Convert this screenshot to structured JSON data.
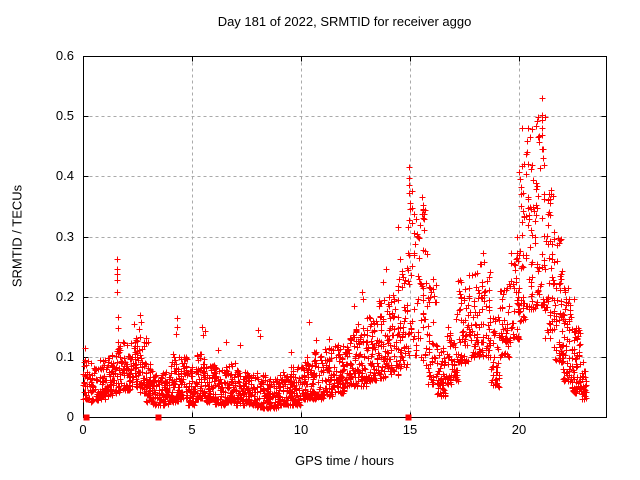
{
  "chart_data": {
    "type": "scatter",
    "title": "Day 181 of 2022, SRMTID for receiver aggo",
    "xlabel": "GPS time / hours",
    "ylabel": "SRMTID / TECUs",
    "xlim": [
      0,
      24
    ],
    "ylim": [
      0,
      0.6
    ],
    "xticks": [
      0,
      5,
      10,
      15,
      20
    ],
    "xtick_labels": [
      "0",
      "5",
      "10",
      "15",
      "20"
    ],
    "yticks": [
      0,
      0.1,
      0.2,
      0.3,
      0.4,
      0.5,
      0.6
    ],
    "ytick_labels": [
      "0",
      "0.1",
      "0.2",
      "0.3",
      "0.4",
      "0.5",
      "0.6"
    ],
    "grid": true,
    "legend_position": "none",
    "series_name": "SRMTID",
    "marker": "plus",
    "marker_color": "#ff0000",
    "grid_color": "#aaaaaa",
    "axis_color": "#000000",
    "background_color": "#ffffff",
    "seed": 42,
    "bins_schema": [
      "t_start_hours",
      "t_end_hours",
      "n_points",
      "value_min_TECUs",
      "value_max_TECUs"
    ],
    "bins": [
      [
        0.0,
        0.3,
        28,
        0.03,
        0.11
      ],
      [
        0.3,
        0.7,
        38,
        0.025,
        0.09
      ],
      [
        0.7,
        1.1,
        45,
        0.03,
        0.095
      ],
      [
        1.1,
        1.5,
        45,
        0.035,
        0.105
      ],
      [
        1.5,
        1.8,
        35,
        0.04,
        0.13
      ],
      [
        1.8,
        2.2,
        48,
        0.045,
        0.125
      ],
      [
        2.2,
        2.6,
        48,
        0.05,
        0.135
      ],
      [
        2.6,
        2.9,
        35,
        0.04,
        0.14
      ],
      [
        2.9,
        3.2,
        40,
        0.025,
        0.09
      ],
      [
        3.2,
        3.6,
        50,
        0.02,
        0.07
      ],
      [
        3.6,
        4.0,
        52,
        0.02,
        0.075
      ],
      [
        4.0,
        4.4,
        48,
        0.025,
        0.105
      ],
      [
        4.4,
        4.8,
        48,
        0.03,
        0.1
      ],
      [
        4.8,
        5.2,
        52,
        0.02,
        0.085
      ],
      [
        5.2,
        5.6,
        52,
        0.03,
        0.105
      ],
      [
        5.6,
        6.0,
        52,
        0.025,
        0.09
      ],
      [
        6.0,
        6.5,
        58,
        0.02,
        0.085
      ],
      [
        6.5,
        7.0,
        58,
        0.025,
        0.09
      ],
      [
        7.0,
        7.5,
        58,
        0.02,
        0.08
      ],
      [
        7.5,
        8.0,
        58,
        0.02,
        0.075
      ],
      [
        8.0,
        8.5,
        58,
        0.015,
        0.07
      ],
      [
        8.5,
        9.0,
        58,
        0.015,
        0.065
      ],
      [
        9.0,
        9.5,
        58,
        0.02,
        0.075
      ],
      [
        9.5,
        10.0,
        58,
        0.02,
        0.085
      ],
      [
        10.0,
        10.5,
        56,
        0.03,
        0.1
      ],
      [
        10.5,
        11.0,
        56,
        0.03,
        0.11
      ],
      [
        11.0,
        11.5,
        56,
        0.035,
        0.115
      ],
      [
        11.5,
        12.0,
        56,
        0.04,
        0.125
      ],
      [
        12.0,
        12.5,
        56,
        0.05,
        0.14
      ],
      [
        12.5,
        13.0,
        56,
        0.05,
        0.16
      ],
      [
        13.0,
        13.5,
        56,
        0.06,
        0.17
      ],
      [
        13.5,
        14.0,
        56,
        0.065,
        0.2
      ],
      [
        14.0,
        14.5,
        54,
        0.07,
        0.22
      ],
      [
        14.5,
        14.9,
        40,
        0.08,
        0.26
      ],
      [
        14.9,
        15.15,
        24,
        0.1,
        0.4
      ],
      [
        15.15,
        15.45,
        24,
        0.1,
        0.34
      ],
      [
        15.45,
        15.8,
        30,
        0.08,
        0.35
      ],
      [
        15.8,
        16.2,
        40,
        0.05,
        0.22
      ],
      [
        16.2,
        16.7,
        50,
        0.035,
        0.12
      ],
      [
        16.7,
        17.2,
        50,
        0.055,
        0.18
      ],
      [
        17.2,
        17.7,
        50,
        0.09,
        0.23
      ],
      [
        17.7,
        18.2,
        50,
        0.1,
        0.25
      ],
      [
        18.2,
        18.7,
        50,
        0.1,
        0.26
      ],
      [
        18.7,
        19.1,
        38,
        0.05,
        0.17
      ],
      [
        19.1,
        19.6,
        45,
        0.1,
        0.24
      ],
      [
        19.6,
        20.0,
        42,
        0.13,
        0.28
      ],
      [
        20.0,
        20.4,
        44,
        0.16,
        0.46
      ],
      [
        20.4,
        20.8,
        44,
        0.18,
        0.49
      ],
      [
        20.8,
        21.2,
        40,
        0.18,
        0.52
      ],
      [
        21.2,
        21.6,
        46,
        0.13,
        0.38
      ],
      [
        21.6,
        22.0,
        50,
        0.09,
        0.3
      ],
      [
        22.0,
        22.4,
        56,
        0.06,
        0.22
      ],
      [
        22.4,
        22.8,
        62,
        0.04,
        0.16
      ],
      [
        22.8,
        23.1,
        26,
        0.03,
        0.095
      ]
    ],
    "outliers": [
      [
        0.08,
        0.115
      ],
      [
        1.57,
        0.262
      ],
      [
        1.57,
        0.246
      ],
      [
        1.58,
        0.237
      ],
      [
        1.56,
        0.228
      ],
      [
        1.58,
        0.208
      ],
      [
        1.6,
        0.166
      ],
      [
        1.61,
        0.148
      ],
      [
        2.35,
        0.155
      ],
      [
        2.62,
        0.17
      ],
      [
        2.68,
        0.158
      ],
      [
        2.55,
        0.147
      ],
      [
        3.0,
        0.125
      ],
      [
        4.3,
        0.165
      ],
      [
        4.32,
        0.15
      ],
      [
        4.28,
        0.138
      ],
      [
        5.45,
        0.15
      ],
      [
        5.5,
        0.136
      ],
      [
        5.62,
        0.143
      ],
      [
        6.2,
        0.112
      ],
      [
        6.55,
        0.125
      ],
      [
        7.2,
        0.12
      ],
      [
        8.05,
        0.145
      ],
      [
        8.1,
        0.134
      ],
      [
        9.55,
        0.108
      ],
      [
        10.35,
        0.158
      ],
      [
        10.7,
        0.128
      ],
      [
        11.3,
        0.13
      ],
      [
        12.45,
        0.185
      ],
      [
        12.8,
        0.208
      ],
      [
        12.85,
        0.196
      ],
      [
        13.75,
        0.225
      ],
      [
        13.9,
        0.246
      ],
      [
        14.45,
        0.315
      ],
      [
        14.55,
        0.262
      ],
      [
        14.95,
        0.415
      ],
      [
        14.97,
        0.398
      ],
      [
        14.96,
        0.386
      ],
      [
        14.98,
        0.372
      ],
      [
        15.0,
        0.356
      ],
      [
        15.02,
        0.346
      ],
      [
        15.55,
        0.366
      ],
      [
        15.6,
        0.353
      ],
      [
        15.62,
        0.345
      ],
      [
        15.65,
        0.338
      ],
      [
        15.58,
        0.33
      ],
      [
        16.05,
        0.23
      ],
      [
        18.35,
        0.272
      ],
      [
        19.9,
        0.3
      ],
      [
        20.15,
        0.48
      ],
      [
        21.06,
        0.53
      ],
      [
        21.07,
        0.502
      ],
      [
        21.05,
        0.494
      ],
      [
        21.08,
        0.481
      ],
      [
        21.06,
        0.469
      ],
      [
        21.1,
        0.446
      ],
      [
        21.12,
        0.43
      ],
      [
        21.4,
        0.341
      ],
      [
        21.42,
        0.336
      ],
      [
        22.55,
        0.196
      ]
    ],
    "zero_markers": [
      0.12,
      3.45,
      14.9
    ]
  }
}
